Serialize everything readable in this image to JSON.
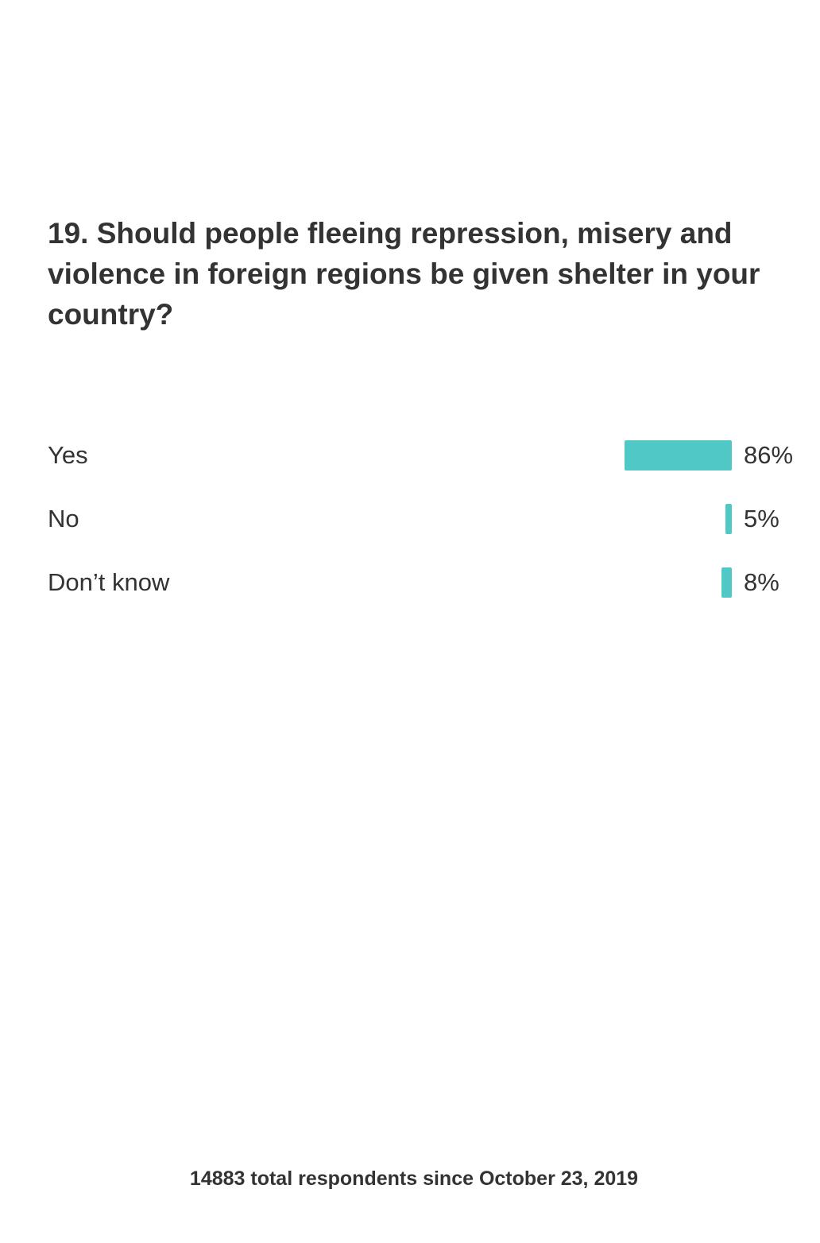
{
  "question": "19. Should people fleeing repression, misery and violence in foreign regions be given shelter in your country?",
  "chart_data": {
    "type": "bar",
    "orientation": "horizontal",
    "categories": [
      "Yes",
      "No",
      "Don’t know"
    ],
    "values": [
      86,
      5,
      8
    ],
    "value_labels": [
      "86%",
      "5%",
      "8%"
    ],
    "unit": "%",
    "bar_color": "#50c8c6"
  },
  "footer": "14883 total respondents since October 23, 2019"
}
